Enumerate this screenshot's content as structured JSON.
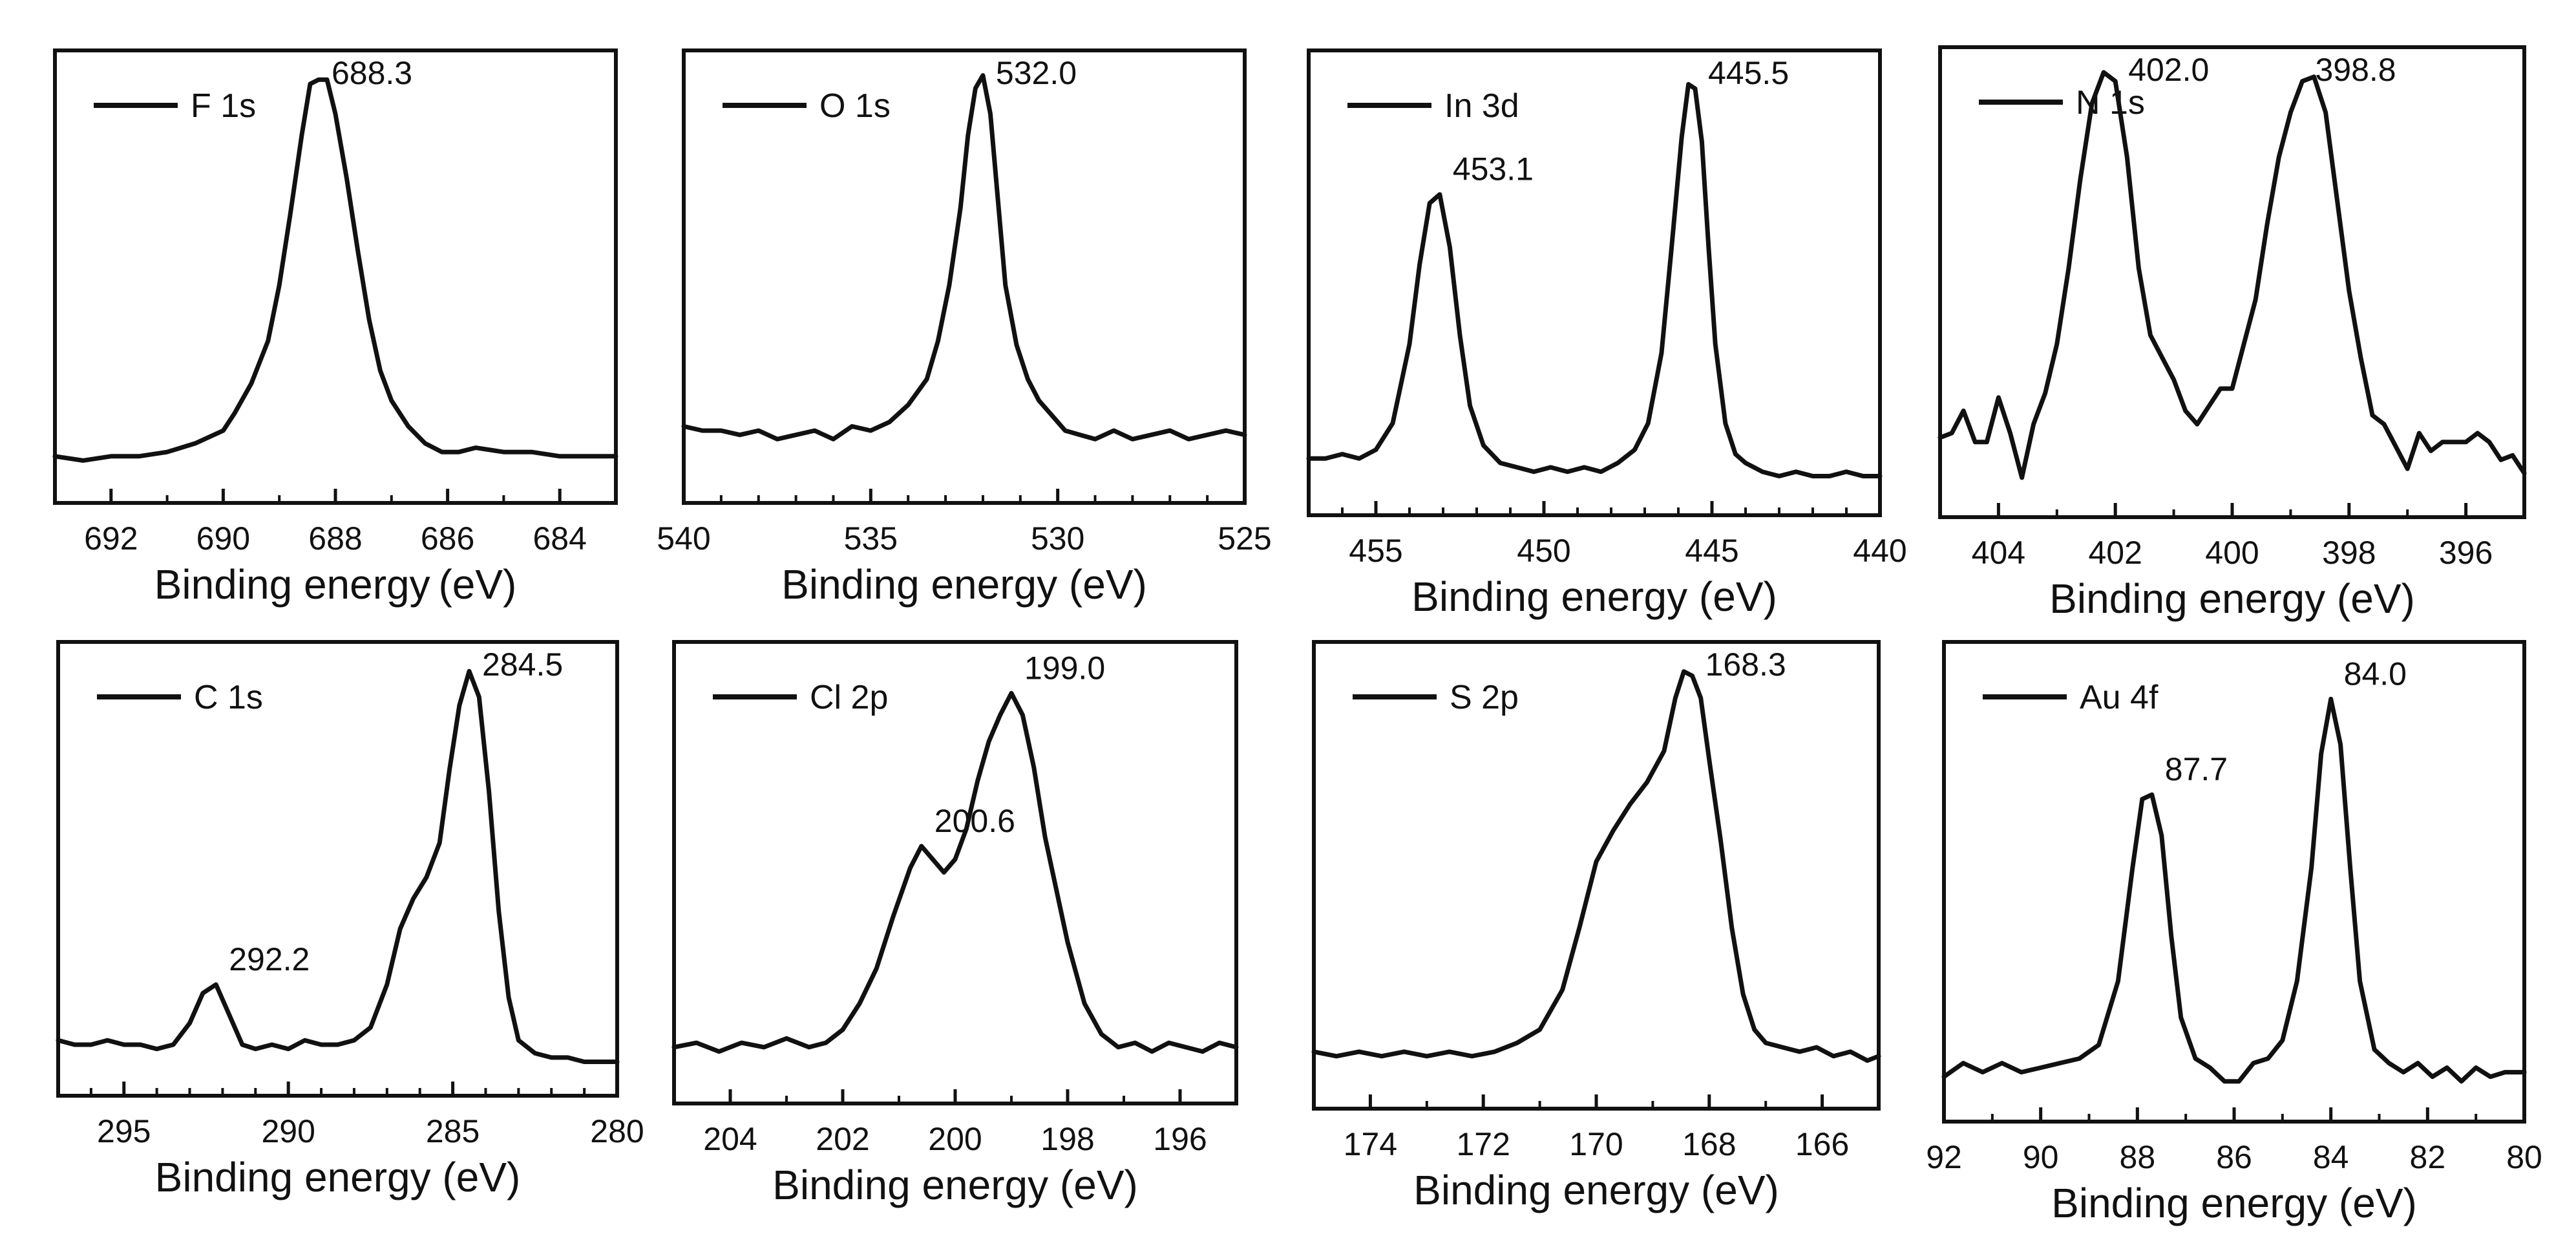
{
  "figure": {
    "line_color": "#111111",
    "background": "#ffffff"
  },
  "chart_data": [
    {
      "type": "line",
      "legend": "F 1s",
      "legend_placement": "top-left",
      "xlabel": "Binding energy (eV)",
      "ylabel": "",
      "x_reversed": true,
      "xlim": [
        693,
        683
      ],
      "ylim": [
        0,
        1
      ],
      "xticks": [
        692,
        690,
        688,
        686,
        684
      ],
      "tick_labels": [
        "692",
        "690",
        "688",
        "686",
        "684"
      ],
      "minor_ticks": [
        691,
        689,
        687,
        685
      ],
      "peak_labels": [
        {
          "text": "688.3",
          "x": 688.3
        }
      ],
      "series": [
        {
          "x": [
            693,
            692.5,
            692,
            691.5,
            691,
            690.5,
            690,
            689.8,
            689.5,
            689.2,
            689,
            688.8,
            688.6,
            688.45,
            688.3,
            688.15,
            688,
            687.8,
            687.6,
            687.4,
            687.2,
            687,
            686.7,
            686.4,
            686.1,
            685.8,
            685.5,
            685,
            684.5,
            684,
            683.5,
            683
          ],
          "y": [
            0.1,
            0.09,
            0.1,
            0.1,
            0.11,
            0.13,
            0.16,
            0.2,
            0.27,
            0.37,
            0.5,
            0.67,
            0.85,
            0.97,
            0.98,
            0.98,
            0.9,
            0.75,
            0.58,
            0.42,
            0.3,
            0.23,
            0.17,
            0.13,
            0.11,
            0.11,
            0.12,
            0.11,
            0.11,
            0.1,
            0.1,
            0.1
          ]
        }
      ]
    },
    {
      "type": "line",
      "legend": "O 1s",
      "legend_placement": "top-left",
      "xlabel": "Binding energy (eV)",
      "ylabel": "",
      "x_reversed": true,
      "xlim": [
        540,
        525
      ],
      "ylim": [
        0,
        1
      ],
      "xticks": [
        540,
        535,
        530,
        525
      ],
      "tick_labels": [
        "540",
        "535",
        "530",
        "525"
      ],
      "minor_ticks": [
        539,
        538,
        537,
        536,
        534,
        533,
        532,
        531,
        529,
        528,
        527,
        526
      ],
      "peak_labels": [
        {
          "text": "532.0",
          "x": 532.0
        }
      ],
      "series": [
        {
          "x": [
            540,
            539.5,
            539,
            538.5,
            538,
            537.5,
            537,
            536.5,
            536,
            535.5,
            535,
            534.5,
            534,
            533.5,
            533.2,
            532.9,
            532.6,
            532.4,
            532.2,
            532.0,
            531.8,
            531.6,
            531.4,
            531.1,
            530.8,
            530.5,
            530.2,
            529.8,
            529.4,
            529,
            528.5,
            528,
            527.5,
            527,
            526.5,
            526,
            525.5,
            525
          ],
          "y": [
            0.17,
            0.16,
            0.16,
            0.15,
            0.16,
            0.14,
            0.15,
            0.16,
            0.14,
            0.17,
            0.16,
            0.18,
            0.22,
            0.28,
            0.37,
            0.5,
            0.68,
            0.85,
            0.96,
            0.99,
            0.9,
            0.7,
            0.5,
            0.36,
            0.28,
            0.23,
            0.2,
            0.16,
            0.15,
            0.14,
            0.16,
            0.14,
            0.15,
            0.16,
            0.14,
            0.15,
            0.16,
            0.15
          ]
        }
      ]
    },
    {
      "type": "line",
      "legend": "In 3d",
      "legend_placement": "top-left",
      "xlabel": "Binding energy (eV)",
      "ylabel": "",
      "x_reversed": true,
      "xlim": [
        457,
        440
      ],
      "ylim": [
        0,
        1
      ],
      "xticks": [
        455,
        450,
        445,
        440
      ],
      "tick_labels": [
        "455",
        "450",
        "445",
        "440"
      ],
      "minor_ticks": [
        456,
        454,
        453,
        452,
        451,
        449,
        448,
        447,
        446,
        444,
        443,
        442,
        441
      ],
      "peak_labels": [
        {
          "text": "453.1",
          "x": 453.1
        },
        {
          "text": "445.5",
          "x": 445.5
        }
      ],
      "series": [
        {
          "x": [
            457,
            456.5,
            456,
            455.5,
            455,
            454.5,
            454,
            453.7,
            453.4,
            453.1,
            452.8,
            452.5,
            452.2,
            451.8,
            451.3,
            450.8,
            450.3,
            449.8,
            449.3,
            448.8,
            448.3,
            447.8,
            447.3,
            446.9,
            446.5,
            446.2,
            445.9,
            445.7,
            445.5,
            445.3,
            445.1,
            444.9,
            444.6,
            444.3,
            444,
            443.5,
            443,
            442.5,
            442,
            441.5,
            441,
            440.5,
            440
          ],
          "y": [
            0.12,
            0.12,
            0.13,
            0.12,
            0.14,
            0.2,
            0.38,
            0.56,
            0.7,
            0.72,
            0.6,
            0.4,
            0.24,
            0.15,
            0.11,
            0.1,
            0.09,
            0.1,
            0.09,
            0.1,
            0.09,
            0.11,
            0.14,
            0.2,
            0.36,
            0.6,
            0.85,
            0.97,
            0.96,
            0.84,
            0.6,
            0.38,
            0.2,
            0.13,
            0.11,
            0.09,
            0.08,
            0.09,
            0.08,
            0.08,
            0.09,
            0.08,
            0.08
          ]
        }
      ]
    },
    {
      "type": "line",
      "legend": "N 1s",
      "legend_placement": "top-left",
      "xlabel": "Binding energy (eV)",
      "ylabel": "",
      "x_reversed": true,
      "xlim": [
        405,
        395
      ],
      "ylim": [
        0,
        1
      ],
      "xticks": [
        404,
        402,
        400,
        398,
        396
      ],
      "tick_labels": [
        "404",
        "402",
        "400",
        "398",
        "396"
      ],
      "minor_ticks": [
        405,
        403,
        401,
        399,
        397,
        395
      ],
      "peak_labels": [
        {
          "text": "402.0",
          "x": 402.0
        },
        {
          "text": "398.8",
          "x": 398.8
        }
      ],
      "series": [
        {
          "x": [
            405,
            404.8,
            404.6,
            404.4,
            404.2,
            404,
            403.8,
            403.6,
            403.4,
            403.2,
            403,
            402.8,
            402.6,
            402.4,
            402.2,
            402,
            401.8,
            401.6,
            401.4,
            401.2,
            401,
            400.8,
            400.6,
            400.4,
            400.2,
            400,
            399.8,
            399.6,
            399.4,
            399.2,
            399,
            398.8,
            398.6,
            398.4,
            398.2,
            398,
            397.8,
            397.6,
            397.4,
            397.2,
            397,
            396.8,
            396.6,
            396.4,
            396.2,
            396,
            395.8,
            395.6,
            395.4,
            395.2,
            395
          ],
          "y": [
            0.17,
            0.18,
            0.23,
            0.16,
            0.16,
            0.26,
            0.18,
            0.08,
            0.2,
            0.27,
            0.38,
            0.55,
            0.75,
            0.92,
            0.99,
            0.97,
            0.8,
            0.55,
            0.4,
            0.35,
            0.3,
            0.23,
            0.2,
            0.24,
            0.28,
            0.28,
            0.38,
            0.48,
            0.65,
            0.8,
            0.9,
            0.97,
            0.98,
            0.9,
            0.7,
            0.5,
            0.35,
            0.22,
            0.2,
            0.15,
            0.1,
            0.18,
            0.14,
            0.16,
            0.16,
            0.16,
            0.18,
            0.16,
            0.12,
            0.13,
            0.09
          ]
        }
      ]
    },
    {
      "type": "line",
      "legend": "C 1s",
      "legend_placement": "top-left",
      "xlabel": "Binding energy (eV)",
      "ylabel": "",
      "x_reversed": true,
      "xlim": [
        297,
        280
      ],
      "ylim": [
        0,
        1
      ],
      "xticks": [
        295,
        290,
        285,
        280
      ],
      "tick_labels": [
        "295",
        "290",
        "285",
        "280"
      ],
      "minor_ticks": [
        296,
        294,
        293,
        292,
        291,
        289,
        288,
        287,
        286,
        284,
        283,
        282,
        281
      ],
      "peak_labels": [
        {
          "text": "292.2",
          "x": 292.2
        },
        {
          "text": "284.5",
          "x": 284.5
        }
      ],
      "series": [
        {
          "x": [
            297,
            296.5,
            296,
            295.5,
            295,
            294.5,
            294,
            293.5,
            293,
            292.6,
            292.2,
            291.8,
            291.4,
            291,
            290.5,
            290,
            289.5,
            289,
            288.5,
            288,
            287.5,
            287,
            286.6,
            286.2,
            285.8,
            285.4,
            285.1,
            284.8,
            284.5,
            284.2,
            283.9,
            283.6,
            283.3,
            283,
            282.5,
            282,
            281.5,
            281,
            280.5,
            280
          ],
          "y": [
            0.12,
            0.11,
            0.11,
            0.12,
            0.11,
            0.11,
            0.1,
            0.11,
            0.16,
            0.23,
            0.25,
            0.18,
            0.11,
            0.1,
            0.11,
            0.1,
            0.12,
            0.11,
            0.11,
            0.12,
            0.15,
            0.25,
            0.38,
            0.45,
            0.5,
            0.58,
            0.75,
            0.9,
            0.98,
            0.92,
            0.7,
            0.42,
            0.22,
            0.12,
            0.09,
            0.08,
            0.08,
            0.07,
            0.07,
            0.07
          ]
        }
      ]
    },
    {
      "type": "line",
      "legend": "Cl 2p",
      "legend_placement": "top-left",
      "xlabel": "Binding energy (eV)",
      "ylabel": "",
      "x_reversed": true,
      "xlim": [
        205,
        195
      ],
      "ylim": [
        0,
        1
      ],
      "xticks": [
        204,
        202,
        200,
        198,
        196
      ],
      "tick_labels": [
        "204",
        "202",
        "200",
        "198",
        "196"
      ],
      "minor_ticks": [
        205,
        203,
        201,
        199,
        197,
        195
      ],
      "peak_labels": [
        {
          "text": "200.6",
          "x": 200.6
        },
        {
          "text": "199.0",
          "x": 199.0
        }
      ],
      "series": [
        {
          "x": [
            205,
            204.6,
            204.2,
            203.8,
            203.4,
            203,
            202.6,
            202.3,
            202,
            201.7,
            201.4,
            201.1,
            200.8,
            200.6,
            200.4,
            200.2,
            200,
            199.8,
            199.6,
            199.4,
            199.2,
            199,
            198.8,
            198.6,
            198.4,
            198.2,
            198,
            197.7,
            197.4,
            197.1,
            196.8,
            196.5,
            196.2,
            195.9,
            195.6,
            195.3,
            195
          ],
          "y": [
            0.12,
            0.13,
            0.11,
            0.13,
            0.12,
            0.14,
            0.12,
            0.13,
            0.16,
            0.22,
            0.3,
            0.42,
            0.53,
            0.58,
            0.55,
            0.52,
            0.55,
            0.62,
            0.73,
            0.82,
            0.88,
            0.93,
            0.88,
            0.76,
            0.6,
            0.48,
            0.36,
            0.22,
            0.15,
            0.12,
            0.13,
            0.11,
            0.13,
            0.12,
            0.11,
            0.13,
            0.12
          ]
        }
      ]
    },
    {
      "type": "line",
      "legend": "S 2p",
      "legend_placement": "top-left",
      "xlabel": "Binding energy (eV)",
      "ylabel": "",
      "x_reversed": true,
      "xlim": [
        175,
        165
      ],
      "ylim": [
        0,
        1
      ],
      "xticks": [
        174,
        172,
        170,
        168,
        166
      ],
      "tick_labels": [
        "174",
        "172",
        "170",
        "168",
        "166"
      ],
      "minor_ticks": [
        175,
        173,
        171,
        169,
        167,
        165
      ],
      "peak_labels": [
        {
          "text": "168.3",
          "x": 168.3
        }
      ],
      "series": [
        {
          "x": [
            175,
            174.6,
            174.2,
            173.8,
            173.4,
            173,
            172.6,
            172.2,
            171.8,
            171.4,
            171,
            170.6,
            170.3,
            170,
            169.7,
            169.4,
            169.1,
            168.8,
            168.6,
            168.45,
            168.3,
            168.15,
            168,
            167.8,
            167.6,
            167.4,
            167.2,
            167,
            166.7,
            166.4,
            166.1,
            165.8,
            165.5,
            165.2,
            165
          ],
          "y": [
            0.12,
            0.11,
            0.12,
            0.11,
            0.12,
            0.11,
            0.12,
            0.11,
            0.12,
            0.14,
            0.17,
            0.26,
            0.4,
            0.55,
            0.62,
            0.68,
            0.73,
            0.8,
            0.92,
            0.98,
            0.97,
            0.92,
            0.78,
            0.6,
            0.4,
            0.25,
            0.17,
            0.14,
            0.13,
            0.12,
            0.13,
            0.11,
            0.12,
            0.1,
            0.11
          ]
        }
      ]
    },
    {
      "type": "line",
      "legend": "Au 4f",
      "legend_placement": "top-left",
      "xlabel": "Binding energy (eV)",
      "ylabel": "",
      "x_reversed": true,
      "xlim": [
        92,
        80
      ],
      "ylim": [
        0,
        1
      ],
      "xticks": [
        92,
        90,
        88,
        86,
        84,
        82,
        80
      ],
      "tick_labels": [
        "92",
        "90",
        "88",
        "86",
        "84",
        "82",
        "80"
      ],
      "minor_ticks": [
        91,
        89,
        87,
        85,
        83,
        81
      ],
      "peak_labels": [
        {
          "text": "87.7",
          "x": 87.7
        },
        {
          "text": "84.0",
          "x": 84.0
        }
      ],
      "series": [
        {
          "x": [
            92,
            91.6,
            91.2,
            90.8,
            90.4,
            90,
            89.6,
            89.2,
            88.8,
            88.4,
            88.1,
            87.9,
            87.7,
            87.5,
            87.3,
            87.1,
            86.8,
            86.5,
            86.2,
            85.9,
            85.6,
            85.3,
            85,
            84.7,
            84.4,
            84.2,
            84,
            83.8,
            83.6,
            83.4,
            83.1,
            82.8,
            82.5,
            82.2,
            81.9,
            81.6,
            81.3,
            81,
            80.7,
            80.4,
            80
          ],
          "y": [
            0.09,
            0.12,
            0.1,
            0.12,
            0.1,
            0.11,
            0.12,
            0.13,
            0.16,
            0.3,
            0.55,
            0.7,
            0.71,
            0.62,
            0.4,
            0.22,
            0.13,
            0.11,
            0.08,
            0.08,
            0.12,
            0.13,
            0.17,
            0.3,
            0.55,
            0.8,
            0.92,
            0.82,
            0.55,
            0.3,
            0.15,
            0.12,
            0.1,
            0.12,
            0.09,
            0.11,
            0.08,
            0.11,
            0.09,
            0.1,
            0.1
          ]
        }
      ]
    }
  ]
}
